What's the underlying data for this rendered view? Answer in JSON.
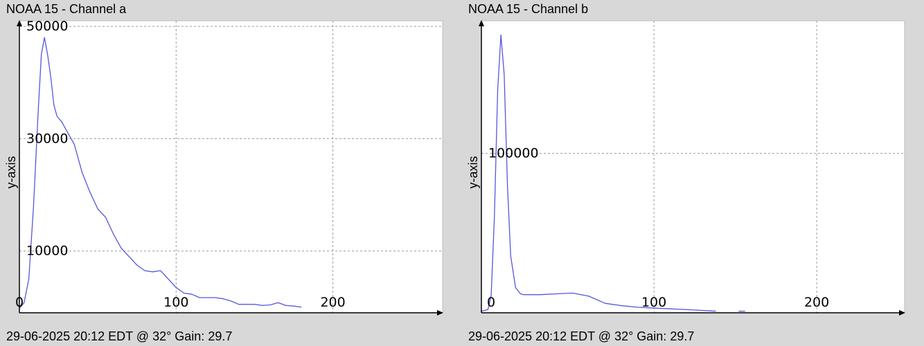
{
  "charts": [
    {
      "title": "NOAA 15 - Channel a",
      "footer": "29-06-2025 20:12 EDT @ 32° Gain: 29.7"
    },
    {
      "title": "NOAA 15 - Channel b",
      "footer": "29-06-2025 20:12 EDT @ 32° Gain: 29.7"
    }
  ],
  "colors": {
    "background": "#d8d8d8",
    "plot_area": "#ffffff",
    "series": "#5555dd",
    "grid": "#9a9a9a"
  },
  "chart_data": [
    {
      "type": "line",
      "title": "NOAA 15 - Channel a",
      "xlabel": "",
      "ylabel": "y-axis",
      "xlim": [
        0,
        270
      ],
      "ylim": [
        -1000,
        51000
      ],
      "xticks": [
        0,
        100,
        200
      ],
      "yticks": [
        10000,
        30000,
        50000
      ],
      "grid": true,
      "series": [
        {
          "x": [
            0,
            3,
            6,
            9,
            12,
            14,
            16,
            18,
            20,
            22,
            24,
            27,
            30,
            35,
            40,
            45,
            50,
            55,
            60,
            65,
            70,
            75,
            80,
            85,
            90,
            95,
            100,
            105,
            110,
            115,
            120,
            125,
            130,
            135,
            140,
            145,
            150,
            155,
            160,
            165,
            170,
            175,
            180
          ],
          "y": [
            -200,
            800,
            5000,
            18000,
            35000,
            45000,
            48000,
            45000,
            41000,
            36000,
            34000,
            33000,
            31500,
            29000,
            24000,
            20500,
            17500,
            16000,
            13000,
            10500,
            9000,
            7500,
            6500,
            6300,
            6500,
            5000,
            3500,
            2500,
            2300,
            1700,
            1700,
            1700,
            1500,
            1100,
            500,
            500,
            500,
            300,
            400,
            800,
            300,
            200,
            0
          ]
        }
      ]
    },
    {
      "type": "line",
      "title": "NOAA 15 - Channel b",
      "xlabel": "",
      "ylabel": "y-axis",
      "xlim": [
        -6,
        254
      ],
      "ylim": [
        -1000,
        184000
      ],
      "xticks": [
        0,
        100,
        200
      ],
      "yticks": [
        100000
      ],
      "grid": true,
      "series": [
        {
          "x": [
            -6,
            -2,
            0,
            2,
            4,
            6,
            8,
            10,
            12,
            15,
            18,
            20,
            25,
            30,
            40,
            50,
            60,
            70,
            80,
            90,
            100,
            110,
            120,
            130,
            138
          ],
          "y": [
            0,
            1000,
            10000,
            60000,
            140000,
            175000,
            150000,
            80000,
            35000,
            15000,
            11000,
            10500,
            10500,
            10500,
            11000,
            11500,
            9500,
            5000,
            3500,
            2500,
            2000,
            1500,
            1000,
            500,
            0
          ]
        },
        {
          "x": [
            152,
            156
          ],
          "y": [
            0,
            0
          ]
        }
      ]
    }
  ]
}
